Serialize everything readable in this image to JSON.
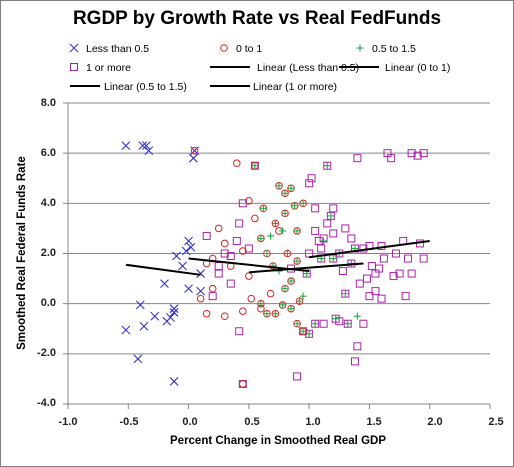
{
  "chart_data": {
    "type": "scatter",
    "title": "RGDP by Growth Rate vs Real FedFunds",
    "xlabel": "Percent Change in Smoothed Real GDP",
    "ylabel": "Smoothed Real Federal Funds Rate",
    "xlim": [
      -1.0,
      2.5
    ],
    "ylim": [
      -4.0,
      8.0
    ],
    "xticks": [
      "-1.0",
      "-0.5",
      "0.0",
      "0.5",
      "1.0",
      "1.5",
      "2.0",
      "2.5"
    ],
    "yticks": [
      "8.0",
      "6.0",
      "4.0",
      "2.0",
      "0.0",
      "-2.0",
      "-4.0"
    ],
    "grid": "horizontal",
    "legend_position": "top",
    "series": [
      {
        "name": "Less than 0.5",
        "marker": "x",
        "color": "#3333cc",
        "points": [
          [
            -0.52,
            6.3
          ],
          [
            -0.38,
            6.3
          ],
          [
            -0.33,
            6.1
          ],
          [
            -0.35,
            6.3
          ],
          [
            -0.52,
            -1.05
          ],
          [
            -0.42,
            -2.2
          ],
          [
            -0.4,
            -0.05
          ],
          [
            -0.37,
            -0.9
          ],
          [
            -0.28,
            -0.5
          ],
          [
            -0.2,
            0.8
          ],
          [
            -0.15,
            -0.55
          ],
          [
            -0.12,
            -0.35
          ],
          [
            -0.12,
            -0.2
          ],
          [
            -0.18,
            -0.7
          ],
          [
            -0.12,
            -3.1
          ],
          [
            -0.1,
            1.9
          ],
          [
            -0.05,
            1.5
          ],
          [
            -0.02,
            2.1
          ],
          [
            0.0,
            2.5
          ],
          [
            0.02,
            2.25
          ],
          [
            0.05,
            6.1
          ],
          [
            0.04,
            5.8
          ],
          [
            0.1,
            1.2
          ],
          [
            0.1,
            0.5
          ],
          [
            0.0,
            0.6
          ]
        ]
      },
      {
        "name": "0 to 1",
        "marker": "circle",
        "color": "#dd2222",
        "points": [
          [
            0.05,
            6.1
          ],
          [
            0.1,
            0.2
          ],
          [
            0.15,
            1.6
          ],
          [
            0.2,
            1.8
          ],
          [
            0.25,
            3.0
          ],
          [
            0.3,
            2.4
          ],
          [
            0.35,
            1.5
          ],
          [
            0.4,
            5.6
          ],
          [
            0.45,
            2.1
          ],
          [
            0.5,
            4.1
          ],
          [
            0.55,
            5.5
          ],
          [
            0.55,
            3.4
          ],
          [
            0.6,
            2.6
          ],
          [
            0.62,
            3.8
          ],
          [
            0.65,
            2.0
          ],
          [
            0.68,
            0.4
          ],
          [
            0.7,
            1.5
          ],
          [
            0.72,
            3.2
          ],
          [
            0.75,
            4.7
          ],
          [
            0.75,
            2.9
          ],
          [
            0.8,
            4.4
          ],
          [
            0.8,
            3.6
          ],
          [
            0.82,
            2.0
          ],
          [
            0.85,
            4.6
          ],
          [
            0.85,
            0.9
          ],
          [
            0.88,
            3.9
          ],
          [
            0.9,
            1.7
          ],
          [
            0.9,
            2.9
          ],
          [
            0.92,
            0.1
          ],
          [
            0.95,
            4.0
          ],
          [
            0.95,
            -1.1
          ],
          [
            0.6,
            -0.2
          ],
          [
            0.6,
            0.0
          ],
          [
            0.65,
            -0.4
          ],
          [
            0.72,
            -0.4
          ],
          [
            0.78,
            -0.05
          ],
          [
            0.8,
            0.6
          ],
          [
            0.85,
            -0.2
          ],
          [
            0.9,
            -0.8
          ],
          [
            0.5,
            1.1
          ],
          [
            0.52,
            0.2
          ],
          [
            0.45,
            -0.3
          ],
          [
            0.45,
            -3.2
          ],
          [
            0.3,
            -0.5
          ],
          [
            0.2,
            0.6
          ],
          [
            0.15,
            -0.4
          ]
        ]
      },
      {
        "name": "0.5 to 1.5",
        "marker": "plus",
        "color": "#22aa44",
        "points": [
          [
            0.55,
            5.5
          ],
          [
            0.6,
            2.6
          ],
          [
            0.62,
            3.8
          ],
          [
            0.65,
            2.0
          ],
          [
            0.68,
            2.7
          ],
          [
            0.7,
            1.5
          ],
          [
            0.72,
            3.2
          ],
          [
            0.75,
            4.7
          ],
          [
            0.78,
            2.9
          ],
          [
            0.8,
            4.4
          ],
          [
            0.8,
            3.6
          ],
          [
            0.82,
            2.0
          ],
          [
            0.85,
            4.6
          ],
          [
            0.85,
            0.9
          ],
          [
            0.88,
            3.9
          ],
          [
            0.9,
            1.7
          ],
          [
            0.9,
            2.9
          ],
          [
            0.92,
            0.1
          ],
          [
            0.95,
            4.0
          ],
          [
            0.95,
            -1.1
          ],
          [
            0.98,
            1.2
          ],
          [
            1.0,
            -1.2
          ],
          [
            1.05,
            -0.8
          ],
          [
            1.1,
            1.8
          ],
          [
            1.12,
            2.5
          ],
          [
            1.15,
            5.5
          ],
          [
            1.18,
            3.5
          ],
          [
            1.2,
            1.8
          ],
          [
            1.22,
            -0.6
          ],
          [
            1.25,
            2.0
          ],
          [
            1.3,
            0.4
          ],
          [
            1.32,
            -0.8
          ],
          [
            1.35,
            1.6
          ],
          [
            1.38,
            2.2
          ],
          [
            1.4,
            -0.5
          ],
          [
            0.65,
            -0.4
          ],
          [
            0.72,
            -0.4
          ],
          [
            0.78,
            -0.05
          ],
          [
            0.8,
            0.6
          ],
          [
            0.85,
            -0.2
          ],
          [
            0.9,
            -0.8
          ],
          [
            0.95,
            0.3
          ],
          [
            0.6,
            0.0
          ],
          [
            0.75,
            1.3
          ]
        ]
      },
      {
        "name": "1 or more",
        "marker": "square",
        "color": "#aa22aa",
        "points": [
          [
            1.0,
            4.8
          ],
          [
            1.02,
            5.0
          ],
          [
            1.05,
            3.8
          ],
          [
            1.05,
            2.9
          ],
          [
            1.08,
            2.5
          ],
          [
            1.1,
            1.8
          ],
          [
            1.12,
            2.6
          ],
          [
            1.15,
            5.5
          ],
          [
            1.15,
            3.2
          ],
          [
            1.18,
            3.5
          ],
          [
            1.2,
            2.8
          ],
          [
            1.2,
            1.8
          ],
          [
            1.22,
            -0.6
          ],
          [
            1.25,
            2.0
          ],
          [
            1.28,
            1.3
          ],
          [
            1.3,
            0.4
          ],
          [
            1.32,
            -0.8
          ],
          [
            1.35,
            1.6
          ],
          [
            1.38,
            2.2
          ],
          [
            1.4,
            5.8
          ],
          [
            1.4,
            -1.7
          ],
          [
            1.42,
            0.8
          ],
          [
            1.45,
            2.2
          ],
          [
            1.48,
            1.0
          ],
          [
            1.5,
            2.3
          ],
          [
            1.52,
            1.5
          ],
          [
            1.55,
            1.2
          ],
          [
            1.55,
            0.5
          ],
          [
            1.6,
            2.3
          ],
          [
            1.62,
            1.8
          ],
          [
            1.65,
            6.0
          ],
          [
            1.68,
            5.8
          ],
          [
            1.7,
            1.1
          ],
          [
            1.72,
            2.0
          ],
          [
            1.75,
            1.2
          ],
          [
            1.78,
            2.5
          ],
          [
            1.8,
            0.3
          ],
          [
            1.82,
            1.8
          ],
          [
            1.85,
            6.0
          ],
          [
            1.9,
            5.9
          ],
          [
            1.92,
            2.4
          ],
          [
            1.95,
            6.0
          ],
          [
            1.95,
            1.8
          ],
          [
            1.85,
            1.2
          ],
          [
            1.6,
            0.2
          ],
          [
            1.38,
            -2.3
          ],
          [
            1.0,
            -1.2
          ],
          [
            1.05,
            -0.8
          ],
          [
            0.9,
            -2.9
          ],
          [
            0.98,
            1.2
          ],
          [
            1.12,
            -0.8
          ],
          [
            1.25,
            -0.7
          ],
          [
            1.45,
            -0.8
          ],
          [
            1.5,
            0.3
          ],
          [
            1.58,
            1.4
          ],
          [
            1.3,
            3.0
          ],
          [
            1.35,
            2.6
          ],
          [
            1.2,
            3.8
          ],
          [
            1.1,
            2.2
          ],
          [
            1.0,
            2.0
          ],
          [
            0.95,
            -1.1
          ],
          [
            0.85,
            1.4
          ],
          [
            0.55,
            5.5
          ],
          [
            0.45,
            4.0
          ],
          [
            0.42,
            3.2
          ],
          [
            0.4,
            2.5
          ],
          [
            0.35,
            1.9
          ],
          [
            0.3,
            2.0
          ],
          [
            0.25,
            1.5
          ],
          [
            0.2,
            0.3
          ],
          [
            0.15,
            2.7
          ],
          [
            0.42,
            -1.1
          ],
          [
            0.45,
            -3.2
          ],
          [
            0.35,
            0.8
          ],
          [
            0.5,
            2.2
          ],
          [
            0.25,
            1.2
          ]
        ]
      }
    ],
    "trendlines": [
      {
        "name": "Linear (Less than 0.5)",
        "x": [
          -0.52,
          0.1
        ],
        "y": [
          1.55,
          1.15
        ]
      },
      {
        "name": "Linear (0 to 1)",
        "x": [
          0.0,
          1.0
        ],
        "y": [
          1.8,
          1.3
        ]
      },
      {
        "name": "Linear (0.5 to 1.5)",
        "x": [
          0.5,
          1.45
        ],
        "y": [
          1.25,
          1.6
        ]
      },
      {
        "name": "Linear (1 or more)",
        "x": [
          1.0,
          2.0
        ],
        "y": [
          1.85,
          2.5
        ]
      }
    ]
  }
}
